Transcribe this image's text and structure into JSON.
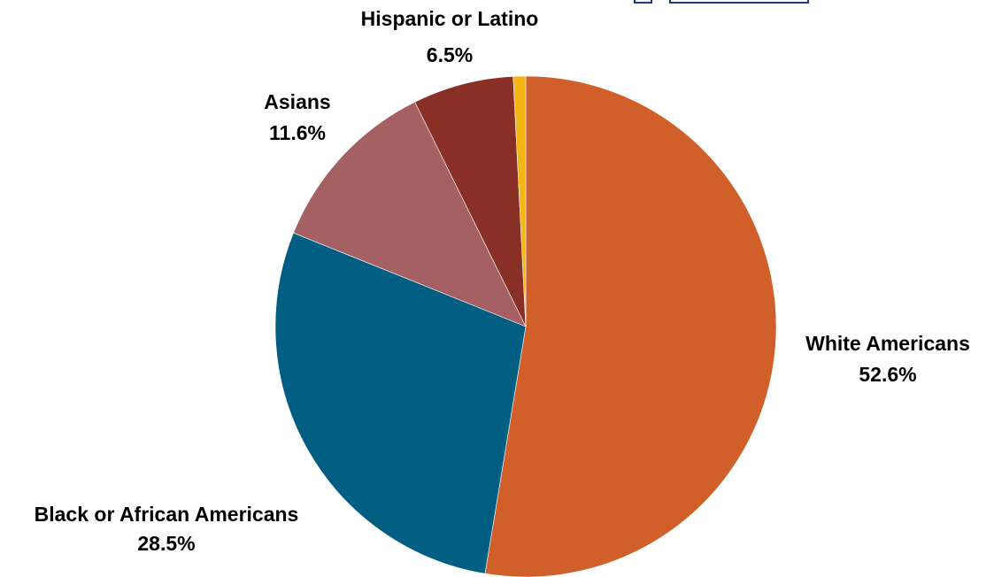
{
  "chart_data": {
    "type": "pie",
    "slices": [
      {
        "label": "White Americans",
        "value": 52.6,
        "value_label": "52.6%",
        "color": "#d05f29"
      },
      {
        "label": "Black or African Americans",
        "value": 28.5,
        "value_label": "28.5%",
        "color": "#005e83"
      },
      {
        "label": "Asians",
        "value": 11.6,
        "value_label": "11.6%",
        "color": "#a46063"
      },
      {
        "label": "Hispanic or Latino",
        "value": 6.5,
        "value_label": "6.5%",
        "color": "#8a2f26"
      },
      {
        "label": "",
        "value": 0.8,
        "value_label": "",
        "color": "#f5b514"
      }
    ],
    "start_angle": "12 o'clock",
    "direction": "clockwise",
    "legend": "none"
  },
  "header_decoration": {
    "color": "#1f3d7a"
  }
}
